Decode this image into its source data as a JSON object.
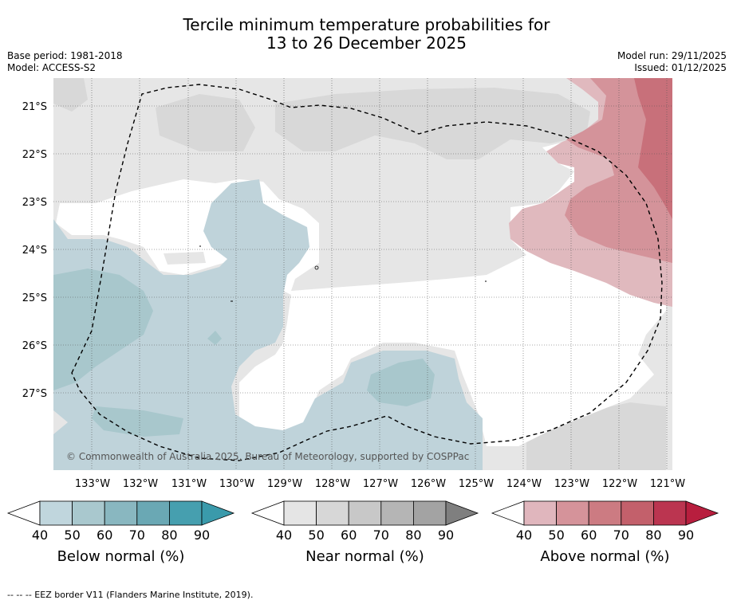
{
  "title": {
    "line1": "Tercile minimum temperature probabilities for",
    "line2": "13 to 26 December 2025"
  },
  "meta": {
    "base_period": "Base period: 1981-2018",
    "model": "Model: ACCESS-S2",
    "model_run": "Model run: 29/11/2025",
    "issued": "Issued: 01/12/2025"
  },
  "map": {
    "lon_labels": [
      "133°W",
      "132°W",
      "131°W",
      "130°W",
      "129°W",
      "128°W",
      "127°W",
      "126°W",
      "125°W",
      "124°W",
      "123°W",
      "122°W",
      "121°W"
    ],
    "lat_labels": [
      "21°S",
      "22°S",
      "23°S",
      "24°S",
      "25°S",
      "26°S",
      "27°S"
    ],
    "copyright": "© Commonwealth of Australia 2025, Bureau of Meteorology, supported by COSPPac",
    "colors": {
      "below_light": "#bfd3da",
      "below_mid": "#a8c7cc",
      "near_light": "#e6e6e6",
      "near_mid": "#d8d8d8",
      "above_light": "#e0b9be",
      "above_mid": "#d4939a",
      "above_dark": "#c8707a"
    }
  },
  "colorbars": [
    {
      "title": "Below normal (%)",
      "ticks": [
        "40",
        "50",
        "60",
        "70",
        "80",
        "90"
      ],
      "colors": [
        "#ffffff",
        "#c0d6dd",
        "#a9c8ce",
        "#89b7c0",
        "#6aa8b4",
        "#469faf",
        "#3a9aab"
      ]
    },
    {
      "title": "Near normal (%)",
      "ticks": [
        "40",
        "50",
        "60",
        "70",
        "80",
        "90"
      ],
      "colors": [
        "#ffffff",
        "#e5e5e5",
        "#d7d7d7",
        "#c8c8c8",
        "#b5b5b5",
        "#a3a3a3",
        "#7f7f7f"
      ]
    },
    {
      "title": "Above normal (%)",
      "ticks": [
        "40",
        "50",
        "60",
        "70",
        "80",
        "90"
      ],
      "colors": [
        "#ffffff",
        "#e0b6bd",
        "#d5939a",
        "#cc7b82",
        "#c3606b",
        "#bb3550",
        "#b81e3e"
      ]
    }
  ],
  "footer": "--  --  -- EEZ border V11 (Flanders Marine Institute, 2019)."
}
